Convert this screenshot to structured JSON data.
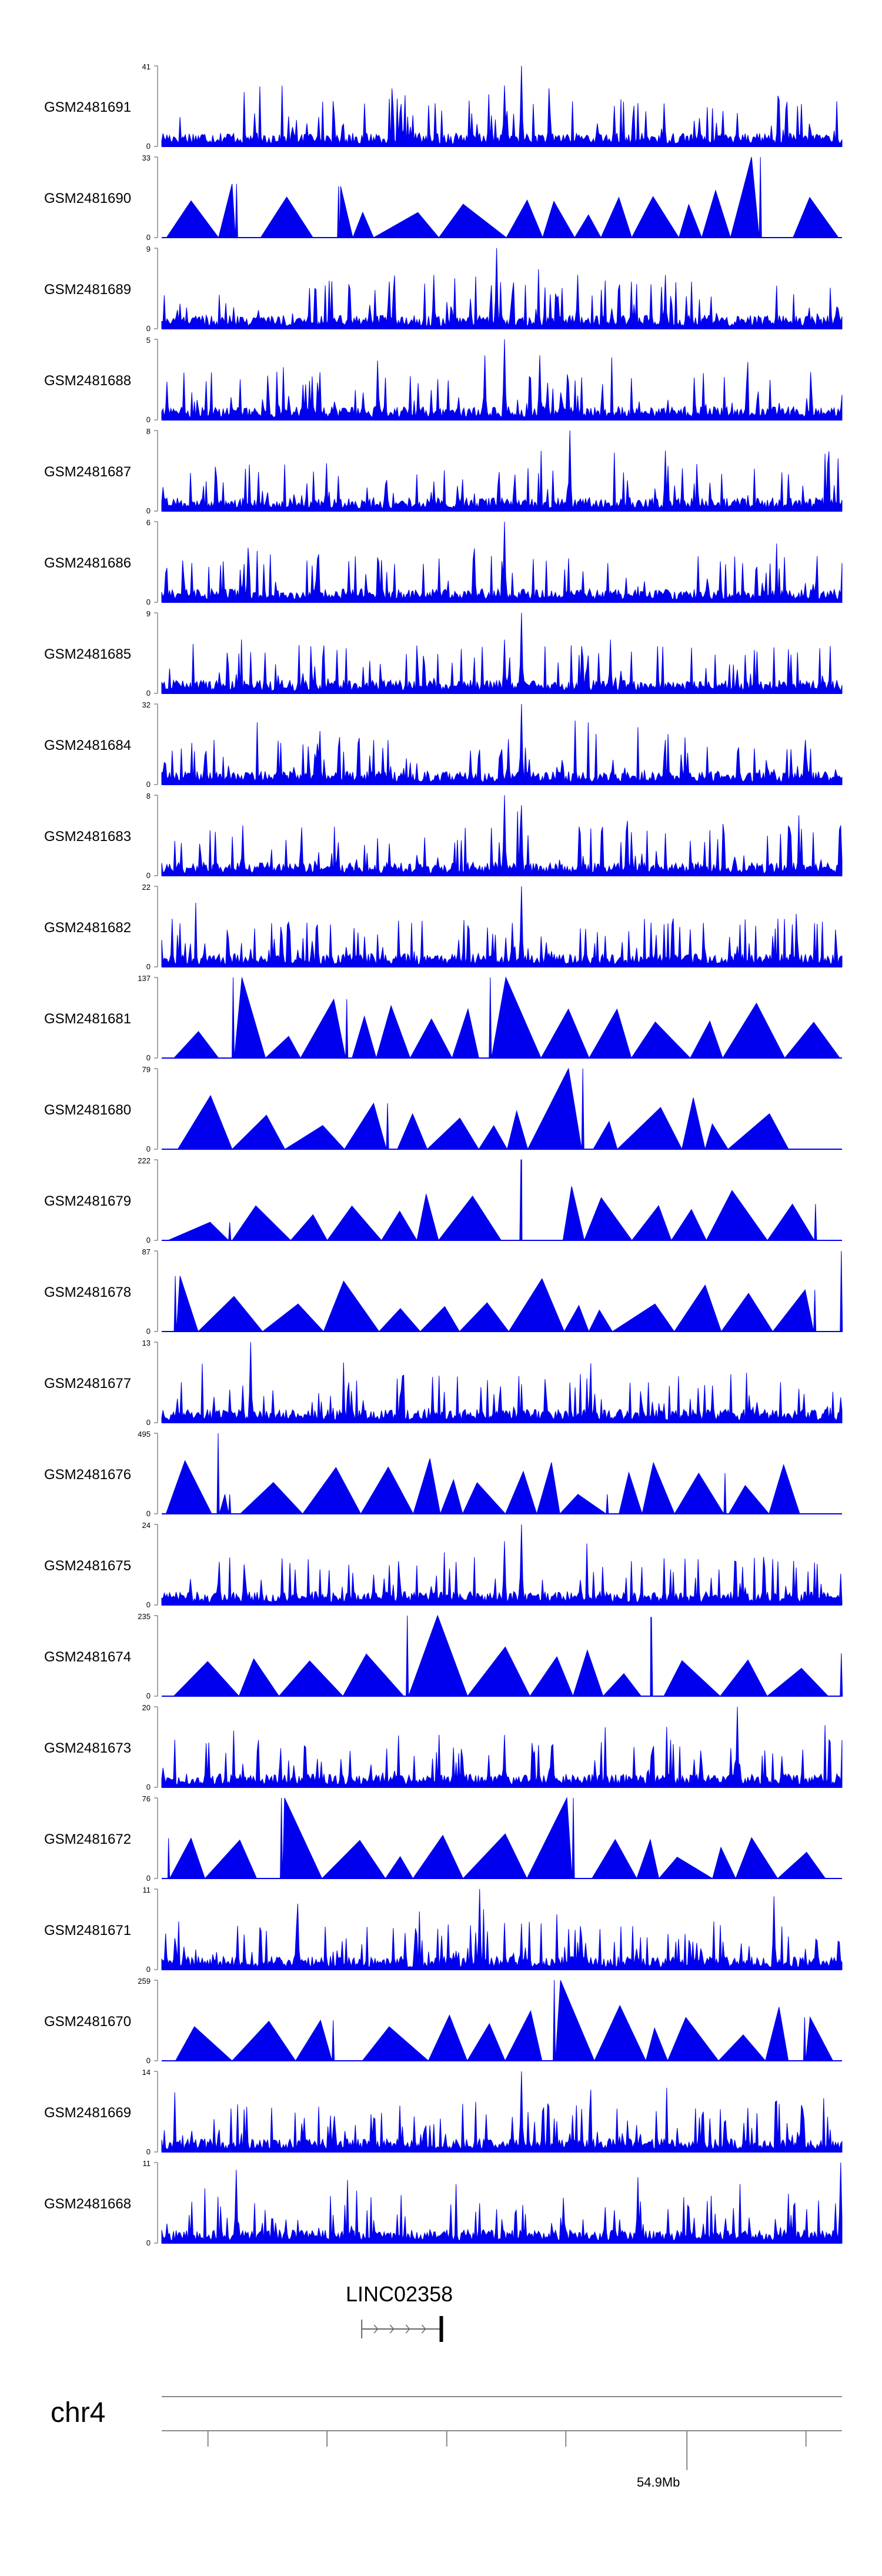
{
  "chart_data": {
    "type": "area",
    "title": "",
    "tracks": [
      {
        "name": "GSM2481691",
        "ymax": 41,
        "ymin": 0,
        "style": "dense",
        "peaks": [
          {
            "x": 0.2315,
            "v": 15
          },
          {
            "x": 0.504,
            "v": 31
          },
          {
            "x": 0.528,
            "v": 41
          },
          {
            "x": 0.508,
            "v": 18
          },
          {
            "x": 0.815,
            "v": 12
          },
          {
            "x": 0.846,
            "v": 17
          },
          {
            "x": 0.73,
            "v": 5
          }
        ]
      },
      {
        "name": "GSM2481690",
        "ymax": 33,
        "ymin": 0,
        "style": "tri",
        "peaks": [
          {
            "x": 0.88,
            "v": 33
          },
          {
            "x": 0.11,
            "v": 22
          },
          {
            "x": 0.26,
            "v": 21
          }
        ]
      },
      {
        "name": "GSM2481689",
        "ymax": 9,
        "ymin": 0,
        "style": "dense",
        "peaks": [
          {
            "x": 0.493,
            "v": 9
          },
          {
            "x": 0.4,
            "v": 6
          },
          {
            "x": 0.612,
            "v": 6
          },
          {
            "x": 0.74,
            "v": 6
          }
        ]
      },
      {
        "name": "GSM2481688",
        "ymax": 5,
        "ymin": 0,
        "style": "dense",
        "peaks": [
          {
            "x": 0.504,
            "v": 5
          },
          {
            "x": 0.475,
            "v": 4
          },
          {
            "x": 0.555,
            "v": 4
          }
        ]
      },
      {
        "name": "GSM2481687",
        "ymax": 8,
        "ymin": 0,
        "style": "dense",
        "peaks": [
          {
            "x": 0.6,
            "v": 8
          },
          {
            "x": 0.74,
            "v": 6
          }
        ]
      },
      {
        "name": "GSM2481686",
        "ymax": 6,
        "ymin": 0,
        "style": "dense",
        "peaks": [
          {
            "x": 0.504,
            "v": 6
          },
          {
            "x": 0.46,
            "v": 4
          }
        ]
      },
      {
        "name": "GSM2481685",
        "ymax": 9,
        "ymin": 0,
        "style": "dense",
        "peaks": [
          {
            "x": 0.528,
            "v": 9
          },
          {
            "x": 0.503,
            "v": 6
          },
          {
            "x": 0.66,
            "v": 6
          }
        ]
      },
      {
        "name": "GSM2481684",
        "ymax": 32,
        "ymin": 0,
        "style": "dense",
        "peaks": [
          {
            "x": 0.528,
            "v": 32
          },
          {
            "x": 0.51,
            "v": 18
          },
          {
            "x": 0.54,
            "v": 10
          },
          {
            "x": 0.5,
            "v": 14
          }
        ]
      },
      {
        "name": "GSM2481683",
        "ymax": 8,
        "ymin": 0,
        "style": "dense",
        "peaks": [
          {
            "x": 0.504,
            "v": 8
          },
          {
            "x": 0.528,
            "v": 7
          },
          {
            "x": 0.12,
            "v": 5
          },
          {
            "x": 0.999,
            "v": 5
          }
        ]
      },
      {
        "name": "GSM2481682",
        "ymax": 22,
        "ymin": 0,
        "style": "dense",
        "peaks": [
          {
            "x": 0.528,
            "v": 22
          },
          {
            "x": 0.515,
            "v": 12
          },
          {
            "x": 0.505,
            "v": 8
          }
        ]
      },
      {
        "name": "GSM2481681",
        "ymax": 137,
        "ymin": 0,
        "style": "tri",
        "peaks": [
          {
            "x": 0.105,
            "v": 137
          },
          {
            "x": 0.483,
            "v": 137
          },
          {
            "x": 0.272,
            "v": 100
          }
        ]
      },
      {
        "name": "GSM2481680",
        "ymax": 79,
        "ymin": 0,
        "style": "tri",
        "peaks": [
          {
            "x": 0.619,
            "v": 79
          },
          {
            "x": 0.332,
            "v": 45
          }
        ]
      },
      {
        "name": "GSM2481679",
        "ymax": 222,
        "ymin": 0,
        "style": "tri",
        "peaks": [
          {
            "x": 0.528,
            "v": 222
          },
          {
            "x": 0.961,
            "v": 100
          },
          {
            "x": 0.1,
            "v": 50
          }
        ]
      },
      {
        "name": "GSM2481678",
        "ymax": 87,
        "ymin": 0,
        "style": "tri",
        "peaks": [
          {
            "x": 0.999,
            "v": 87
          },
          {
            "x": 0.02,
            "v": 60
          },
          {
            "x": 0.96,
            "v": 45
          }
        ]
      },
      {
        "name": "GSM2481677",
        "ymax": 13,
        "ymin": 0,
        "style": "dense",
        "peaks": [
          {
            "x": 0.131,
            "v": 13
          },
          {
            "x": 0.12,
            "v": 6
          },
          {
            "x": 0.81,
            "v": 6
          }
        ]
      },
      {
        "name": "GSM2481676",
        "ymax": 495,
        "ymin": 0,
        "style": "tri",
        "peaks": [
          {
            "x": 0.083,
            "v": 495
          },
          {
            "x": 0.828,
            "v": 250
          },
          {
            "x": 0.1,
            "v": 120
          },
          {
            "x": 0.655,
            "v": 120
          }
        ]
      },
      {
        "name": "GSM2481675",
        "ymax": 24,
        "ymin": 0,
        "style": "dense",
        "peaks": [
          {
            "x": 0.528,
            "v": 24
          },
          {
            "x": 0.504,
            "v": 19
          },
          {
            "x": 0.35,
            "v": 8
          }
        ]
      },
      {
        "name": "GSM2481674",
        "ymax": 235,
        "ymin": 0,
        "style": "tri",
        "peaks": [
          {
            "x": 0.361,
            "v": 235
          },
          {
            "x": 0.72,
            "v": 230
          },
          {
            "x": 0.999,
            "v": 125
          }
        ]
      },
      {
        "name": "GSM2481673",
        "ymax": 20,
        "ymin": 0,
        "style": "dense",
        "peaks": [
          {
            "x": 0.846,
            "v": 20
          },
          {
            "x": 0.504,
            "v": 13
          },
          {
            "x": 0.48,
            "v": 8
          }
        ]
      },
      {
        "name": "GSM2481672",
        "ymax": 76,
        "ymin": 0,
        "style": "tri",
        "peaks": [
          {
            "x": 0.176,
            "v": 76
          },
          {
            "x": 0.605,
            "v": 76
          },
          {
            "x": 0.01,
            "v": 38
          }
        ]
      },
      {
        "name": "GSM2481671",
        "ymax": 11,
        "ymin": 0,
        "style": "dense",
        "peaks": [
          {
            "x": 0.468,
            "v": 11
          },
          {
            "x": 0.2,
            "v": 9
          },
          {
            "x": 0.9,
            "v": 10
          }
        ]
      },
      {
        "name": "GSM2481670",
        "ymax": 259,
        "ymin": 0,
        "style": "tri",
        "peaks": [
          {
            "x": 0.577,
            "v": 259
          },
          {
            "x": 0.252,
            "v": 130
          },
          {
            "x": 0.945,
            "v": 140
          }
        ]
      },
      {
        "name": "GSM2481669",
        "ymax": 14,
        "ymin": 0,
        "style": "dense",
        "peaks": [
          {
            "x": 0.528,
            "v": 14
          },
          {
            "x": 0.79,
            "v": 6
          }
        ]
      },
      {
        "name": "GSM2481668",
        "ymax": 11,
        "ymin": 0,
        "style": "dense",
        "peaks": [
          {
            "x": 0.11,
            "v": 10
          },
          {
            "x": 0.999,
            "v": 11
          },
          {
            "x": 0.7,
            "v": 9
          }
        ]
      }
    ],
    "gene": {
      "name": "LINC02358",
      "start_frac": 0.294,
      "end_frac": 0.411,
      "strand": "+"
    },
    "chromosome": "chr4",
    "axis": {
      "marked_tick_label": "54.9Mb",
      "marked_tick_frac": 0.772,
      "minor_tick_fracs": [
        0.068,
        0.243,
        0.419,
        0.594,
        0.947
      ]
    },
    "colors": {
      "signal": "#0000ee",
      "axis": "#888888",
      "text": "#000000"
    }
  }
}
